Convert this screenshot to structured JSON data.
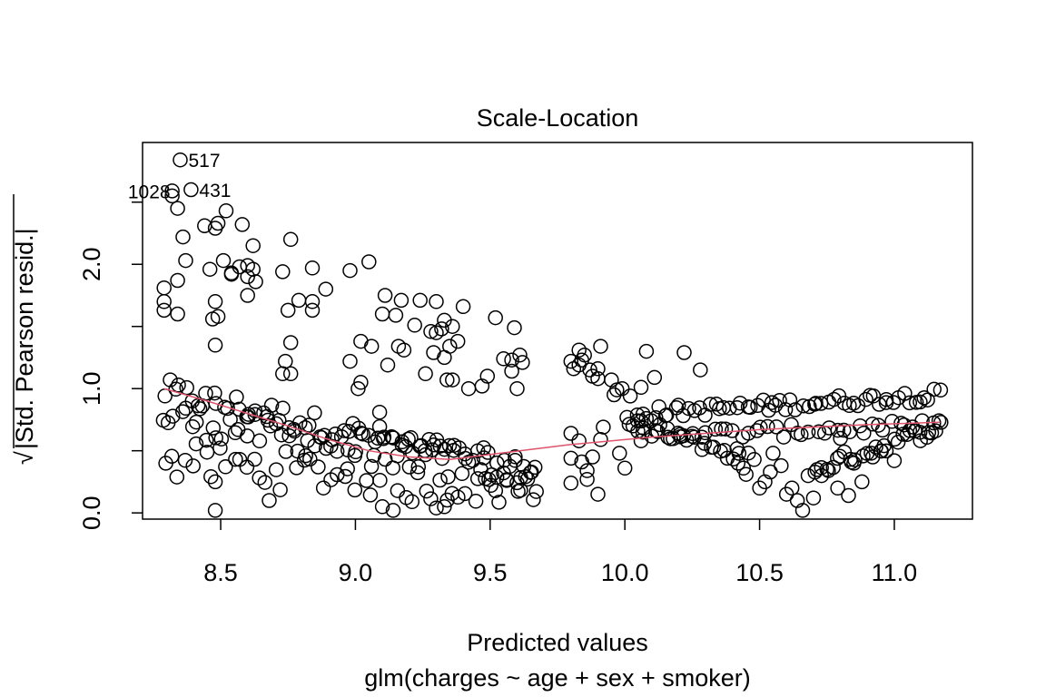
{
  "chart_data": {
    "type": "scatter",
    "title": "Scale-Location",
    "xlabel": "Predicted values",
    "subtitle": "glm(charges ~ age + sex + smoker)",
    "ylabel": "√|Std. Pearson resid.|",
    "ylabel_radical": "√",
    "ylabel_text": "|Std. Pearson resid.|",
    "xlim": [
      8.21,
      11.29
    ],
    "ylim": [
      -0.05,
      2.98
    ],
    "x_ticks": [
      8.5,
      9.0,
      9.5,
      10.0,
      10.5,
      11.0
    ],
    "x_tick_labels": [
      "8.5",
      "9.0",
      "9.5",
      "10.0",
      "10.5",
      "11.0"
    ],
    "y_ticks": [
      0.0,
      0.5,
      1.0,
      1.5,
      2.0,
      2.5
    ],
    "y_tick_labels": [
      "0.0",
      "",
      "1.0",
      "",
      "2.0",
      ""
    ],
    "grid": false,
    "colors": {
      "points": "#000000",
      "smoother": "#DF536B",
      "frame": "#000000"
    },
    "labeled_points": [
      {
        "label": "517",
        "x": 8.35,
        "y": 2.84
      },
      {
        "label": "1028",
        "x": 8.32,
        "y": 2.59
      },
      {
        "label": "431",
        "x": 8.39,
        "y": 2.6
      }
    ],
    "smoother": {
      "x": [
        8.29,
        8.45,
        8.6,
        8.75,
        8.9,
        9.05,
        9.2,
        9.35,
        9.5,
        9.65,
        9.8,
        9.95,
        10.1,
        10.3,
        10.5,
        10.7,
        10.9,
        11.17
      ],
      "y": [
        1.0,
        0.9,
        0.8,
        0.7,
        0.59,
        0.5,
        0.45,
        0.43,
        0.47,
        0.51,
        0.55,
        0.58,
        0.61,
        0.64,
        0.67,
        0.69,
        0.71,
        0.73
      ]
    },
    "outliers": [
      [
        8.35,
        2.84
      ],
      [
        8.32,
        2.55
      ],
      [
        8.32,
        2.59
      ],
      [
        8.39,
        2.6
      ],
      [
        8.34,
        2.45
      ],
      [
        8.36,
        2.22
      ],
      [
        8.37,
        2.03
      ],
      [
        8.34,
        1.87
      ],
      [
        8.29,
        1.81
      ],
      [
        8.29,
        1.7
      ],
      [
        8.29,
        1.63
      ],
      [
        8.34,
        1.6
      ],
      [
        8.44,
        2.31
      ],
      [
        8.49,
        2.33
      ],
      [
        8.52,
        2.43
      ],
      [
        8.48,
        2.29
      ],
      [
        8.46,
        1.96
      ],
      [
        8.51,
        2.03
      ],
      [
        8.54,
        1.92
      ],
      [
        8.47,
        1.56
      ],
      [
        8.49,
        1.58
      ],
      [
        8.48,
        1.7
      ],
      [
        8.48,
        1.35
      ],
      [
        8.58,
        2.32
      ],
      [
        8.57,
        1.98
      ],
      [
        8.6,
        1.99
      ],
      [
        8.62,
        1.96
      ],
      [
        8.6,
        1.9
      ],
      [
        8.63,
        1.86
      ],
      [
        8.62,
        2.15
      ],
      [
        8.6,
        1.75
      ],
      [
        8.54,
        1.93
      ],
      [
        8.73,
        1.94
      ],
      [
        8.76,
        2.2
      ],
      [
        8.84,
        1.97
      ],
      [
        8.75,
        1.63
      ],
      [
        8.79,
        1.71
      ],
      [
        8.84,
        1.63
      ],
      [
        8.89,
        1.8
      ],
      [
        8.84,
        1.7
      ],
      [
        8.76,
        1.37
      ],
      [
        8.74,
        1.22
      ],
      [
        8.73,
        1.12
      ],
      [
        8.76,
        1.12
      ],
      [
        8.98,
        1.95
      ],
      [
        9.05,
        2.02
      ],
      [
        9.11,
        1.75
      ],
      [
        9.17,
        1.71
      ],
      [
        9.15,
        1.59
      ],
      [
        9.1,
        1.6
      ],
      [
        9.02,
        1.38
      ],
      [
        9.06,
        1.34
      ],
      [
        8.98,
        1.22
      ],
      [
        9.01,
        1.0
      ],
      [
        9.02,
        1.05
      ],
      [
        9.09,
        0.81
      ],
      [
        9.12,
        1.19
      ],
      [
        9.16,
        1.34
      ],
      [
        9.18,
        1.31
      ],
      [
        9.22,
        1.51
      ],
      [
        9.24,
        1.71
      ],
      [
        9.28,
        1.46
      ],
      [
        9.3,
        1.45
      ],
      [
        9.32,
        1.48
      ],
      [
        9.33,
        1.55
      ],
      [
        9.36,
        1.5
      ],
      [
        9.38,
        1.38
      ],
      [
        9.4,
        1.66
      ],
      [
        9.3,
        1.7
      ],
      [
        9.29,
        1.29
      ],
      [
        9.33,
        1.25
      ],
      [
        9.35,
        1.34
      ],
      [
        9.34,
        1.07
      ],
      [
        9.36,
        1.07
      ],
      [
        9.26,
        1.12
      ],
      [
        9.42,
        1.0
      ],
      [
        9.47,
        1.02
      ],
      [
        9.49,
        1.1
      ],
      [
        9.52,
        1.57
      ],
      [
        9.59,
        1.49
      ],
      [
        9.55,
        1.24
      ],
      [
        9.58,
        1.23
      ],
      [
        9.61,
        1.27
      ],
      [
        9.62,
        1.21
      ],
      [
        9.58,
        1.14
      ],
      [
        9.6,
        1.0
      ],
      [
        9.8,
        1.22
      ],
      [
        9.81,
        1.16
      ],
      [
        9.83,
        1.19
      ],
      [
        9.84,
        1.23
      ],
      [
        9.85,
        1.27
      ],
      [
        9.83,
        1.31
      ],
      [
        9.87,
        1.15
      ],
      [
        9.88,
        1.1
      ],
      [
        9.9,
        1.16
      ],
      [
        9.91,
        1.34
      ],
      [
        9.9,
        1.08
      ],
      [
        9.95,
        1.07
      ],
      [
        9.97,
        0.99
      ],
      [
        9.96,
        0.95
      ],
      [
        9.99,
        1.0
      ],
      [
        10.02,
        0.94
      ],
      [
        10.08,
        1.3
      ],
      [
        10.11,
        1.09
      ],
      [
        10.22,
        1.29
      ],
      [
        10.28,
        1.15
      ],
      [
        10.06,
        1.01
      ],
      [
        9.8,
        0.64
      ],
      [
        9.8,
        0.44
      ],
      [
        9.8,
        0.24
      ],
      [
        9.83,
        0.58
      ],
      [
        9.84,
        0.41
      ],
      [
        9.86,
        0.34
      ],
      [
        9.86,
        0.27
      ],
      [
        9.88,
        0.45
      ],
      [
        9.9,
        0.15
      ],
      [
        9.91,
        0.59
      ],
      [
        9.92,
        0.69
      ],
      [
        9.98,
        0.48
      ],
      [
        10.0,
        0.36
      ],
      [
        10.03,
        0.7
      ],
      [
        10.06,
        0.58
      ],
      [
        10.38,
        0.44
      ],
      [
        10.42,
        0.4
      ],
      [
        10.44,
        0.36
      ],
      [
        10.45,
        0.31
      ],
      [
        10.48,
        0.43
      ],
      [
        10.5,
        0.2
      ],
      [
        10.52,
        0.25
      ],
      [
        10.54,
        0.33
      ],
      [
        10.55,
        0.48
      ],
      [
        10.58,
        0.38
      ],
      [
        10.6,
        0.15
      ],
      [
        10.62,
        0.2
      ],
      [
        10.64,
        0.1
      ],
      [
        10.66,
        0.02
      ],
      [
        10.68,
        0.3
      ],
      [
        10.7,
        0.12
      ],
      [
        10.73,
        0.3
      ],
      [
        10.75,
        0.35
      ],
      [
        10.79,
        0.2
      ],
      [
        10.8,
        0.6
      ],
      [
        10.83,
        0.14
      ],
      [
        10.85,
        0.4
      ],
      [
        10.88,
        0.25
      ],
      [
        10.92,
        0.45
      ],
      [
        10.95,
        0.5
      ],
      [
        11.0,
        0.42
      ],
      [
        8.48,
        0.02
      ],
      [
        8.48,
        0.25
      ],
      [
        8.68,
        0.1
      ],
      [
        9.1,
        0.05
      ],
      [
        9.14,
        0.02
      ],
      [
        9.3,
        0.04
      ],
      [
        9.33,
        0.05
      ],
      [
        9.21,
        0.09
      ]
    ],
    "bands": [
      {
        "name": "upper-band",
        "x_start": 8.29,
        "x_end": 9.67,
        "count": 70,
        "y_start": 0.98,
        "y_end": 0.33,
        "spread": 0.1
      },
      {
        "name": "middle-band",
        "x_start": 8.29,
        "x_end": 9.67,
        "count": 70,
        "y_start": 0.78,
        "y_end": 0.28,
        "spread": 0.14
      },
      {
        "name": "lower-band",
        "x_start": 8.29,
        "x_end": 9.67,
        "count": 55,
        "y_start": 0.42,
        "y_end": 0.18,
        "spread": 0.16
      },
      {
        "name": "right-upper-band",
        "x_start": 10.05,
        "x_end": 11.17,
        "count": 60,
        "y_start": 0.8,
        "y_end": 0.95,
        "spread": 0.05
      },
      {
        "name": "right-lower-band",
        "x_start": 10.05,
        "x_end": 11.17,
        "count": 45,
        "y_start": 0.62,
        "y_end": 0.7,
        "spread": 0.05
      },
      {
        "name": "right-descending-band",
        "x_start": 10.0,
        "x_end": 10.45,
        "count": 25,
        "y_start": 0.75,
        "y_end": 0.45,
        "spread": 0.06
      },
      {
        "name": "right-ascending-band",
        "x_start": 10.7,
        "x_end": 11.17,
        "count": 30,
        "y_start": 0.35,
        "y_end": 0.7,
        "spread": 0.06
      }
    ]
  }
}
